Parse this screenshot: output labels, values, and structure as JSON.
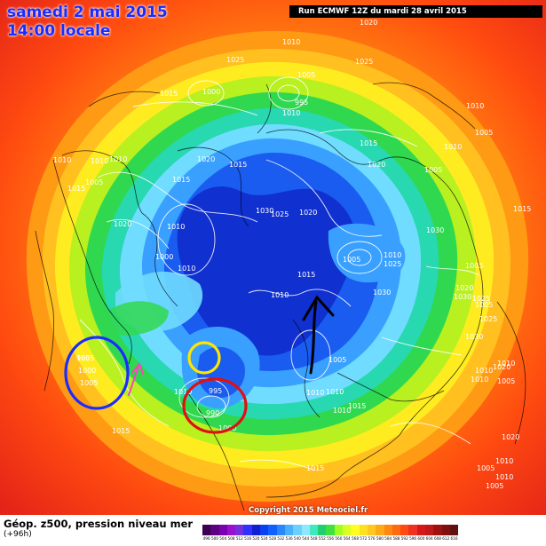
{
  "header": {
    "date_line": "samedi 2 mai 2015",
    "time_line": "14:00 locale",
    "run_line": "Run ECMWF 12Z du mardi 28 avril 2015"
  },
  "footer": {
    "label": "Géop. z500, pression niveau mer",
    "sub": "(+96h)",
    "copyright": "Copyright 2015 Meteociel.fr"
  },
  "legend": {
    "values": [
      "496",
      "500",
      "504",
      "508",
      "512",
      "516",
      "520",
      "524",
      "528",
      "532",
      "536",
      "540",
      "544",
      "548",
      "552",
      "556",
      "560",
      "564",
      "568",
      "572",
      "576",
      "580",
      "584",
      "588",
      "592",
      "596",
      "600",
      "604",
      "608",
      "612",
      "616"
    ],
    "colors": [
      "#3b0050",
      "#5a0080",
      "#7a00b0",
      "#9a10d0",
      "#7030e0",
      "#3030ff",
      "#1020d0",
      "#0a40f0",
      "#1060ff",
      "#2a86ff",
      "#46b0ff",
      "#6ad0ff",
      "#8fe8ff",
      "#40e8c0",
      "#20d070",
      "#40e040",
      "#a0ff20",
      "#d8ff20",
      "#ffff20",
      "#ffe020",
      "#ffc820",
      "#ffa818",
      "#ff8810",
      "#ff6a10",
      "#ff4a10",
      "#f03020",
      "#d81818",
      "#c01818",
      "#a01010",
      "#801010",
      "#601010"
    ]
  },
  "map": {
    "pressure_labels": [
      "1020",
      "1010",
      "1025",
      "1015",
      "1000",
      "1025",
      "1010",
      "1005",
      "995",
      "1010",
      "1015",
      "1020",
      "1005",
      "1010",
      "1010",
      "1015",
      "1005",
      "1010",
      "1020",
      "1015",
      "1010",
      "1015",
      "1020",
      "1030",
      "1025",
      "1020",
      "1030",
      "1005",
      "1000",
      "1010",
      "1005",
      "1010",
      "1015",
      "1025",
      "1010",
      "1030",
      "1005",
      "1030",
      "1025",
      "1030",
      "1005",
      "1010",
      "1025",
      "1020",
      "1010",
      "1020",
      "1005",
      "995",
      "1000",
      "1005",
      "995",
      "990",
      "1000",
      "1010",
      "1005",
      "1010",
      "1015",
      "1015",
      "1010",
      "1015",
      "1010",
      "1010",
      "1010",
      "1005",
      "1020",
      "1010",
      "1005",
      "1010",
      "1005",
      "1015"
    ],
    "marker_colors": {
      "blue_circle": "#1a2cff",
      "yellow_circle": "#ffe600",
      "red_circle": "#e01010",
      "black_arrow": "#000000",
      "pink_arrow": "#ff40c0"
    }
  }
}
